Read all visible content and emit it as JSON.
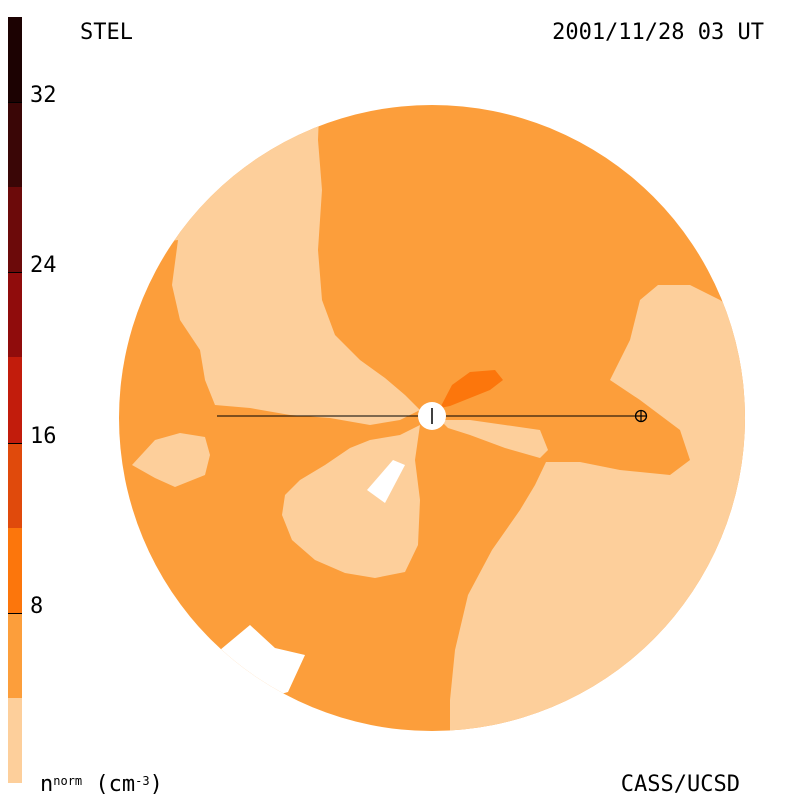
{
  "header": {
    "instrument": "STEL",
    "timestamp": "2001/11/28 03 UT"
  },
  "footer": {
    "credit": "CASS/UCSD"
  },
  "colorbar": {
    "unit_base": "n",
    "unit_sup": "norm",
    "unit_rest": " (cm",
    "unit_exp": "-3",
    "unit_close": ")",
    "tick_labels": [
      "32",
      "24",
      "16",
      "8"
    ],
    "tick_values": [
      32,
      24,
      16,
      8
    ],
    "range": [
      0,
      36
    ],
    "bands": [
      {
        "from": 0,
        "to": 4,
        "color": "#fdcf9b"
      },
      {
        "from": 4,
        "to": 8,
        "color": "#fc9e3b"
      },
      {
        "from": 8,
        "to": 12,
        "color": "#fc760c"
      },
      {
        "from": 12,
        "to": 16,
        "color": "#e04a0c"
      },
      {
        "from": 16,
        "to": 20,
        "color": "#c21c0c"
      },
      {
        "from": 20,
        "to": 24,
        "color": "#900c0c"
      },
      {
        "from": 24,
        "to": 28,
        "color": "#6c0a0a"
      },
      {
        "from": 28,
        "to": 32,
        "color": "#3a0606"
      },
      {
        "from": 32,
        "to": 36,
        "color": "#1c0202"
      }
    ]
  },
  "map": {
    "symbols": [
      "sun-symbol",
      "earth-symbol"
    ]
  }
}
